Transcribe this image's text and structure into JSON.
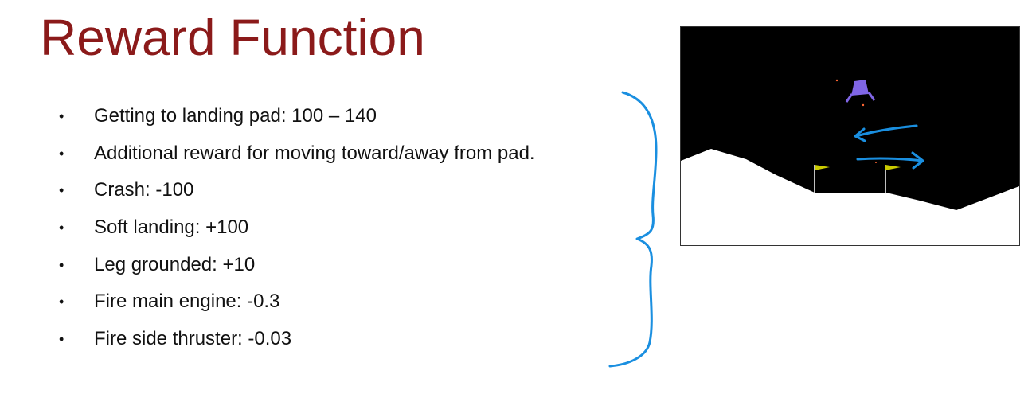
{
  "slide": {
    "title": "Reward Function",
    "bullet_glyph": "•",
    "bullets": [
      "Getting to landing pad: 100 – 140",
      "Additional reward for moving toward/away from pad.",
      "Crash: -100",
      "Soft landing: +100",
      "Leg grounded: +10",
      "Fire main engine: -0.3",
      "Fire side thruster: -0.03"
    ]
  },
  "annotation": {
    "brace_icon": "curly-brace-icon",
    "color": "#1a8fe0"
  },
  "game": {
    "description_icons": [
      "lunar-lander-icon",
      "landing-flag-icon",
      "left-arrow-icon",
      "right-arrow-icon"
    ],
    "colors": {
      "sky": "#000000",
      "terrain": "#ffffff",
      "lander_body": "#8066e6",
      "lander_legs": "#8066e6",
      "flag": "#cccc00",
      "flag_pole": "#ffffff",
      "arrows": "#1a8fe0",
      "particles": "#ff6633"
    }
  }
}
